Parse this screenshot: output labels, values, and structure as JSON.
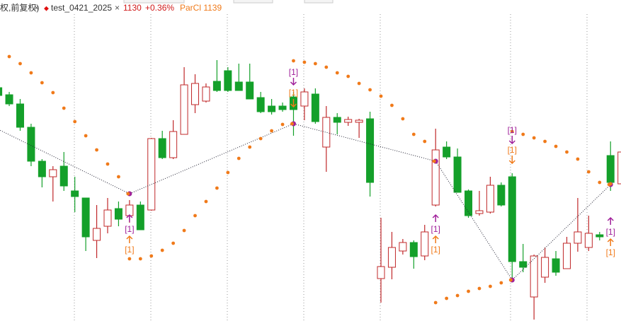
{
  "chart_data": {
    "type": "candlestick",
    "header": {
      "prefix": "权,前复权)",
      "close_mark": "×",
      "symbol_mark": "◆",
      "symbol": "test_0421_2025",
      "price": "1130",
      "close_mark2": "×",
      "change": "+0.36%",
      "indicator": "ParCl 1139"
    },
    "ylim": [
      0,
      454
    ],
    "up_color": "#c0282a",
    "down_color": "#14a02a",
    "sar_color": "#f07a1a",
    "open": [
      330,
      320,
      307,
      274,
      226,
      204,
      219,
      184,
      174,
      114,
      134,
      159,
      149,
      164,
      157,
      258,
      231,
      264,
      306,
      311,
      339,
      354,
      338,
      338,
      316,
      304,
      304,
      317,
      304,
      321,
      246,
      288,
      281,
      281,
      286,
      60,
      76,
      99,
      111,
      92,
      164,
      246,
      232,
      184,
      152,
      154,
      192,
      204,
      84,
      34,
      62,
      88,
      74,
      110,
      104,
      122,
      234,
      194
    ],
    "high": [
      334,
      324,
      314,
      279,
      229,
      219,
      239,
      204,
      174,
      164,
      174,
      169,
      171,
      169,
      259,
      269,
      284,
      359,
      349,
      336,
      369,
      359,
      364,
      364,
      324,
      314,
      309,
      324,
      329,
      329,
      304,
      294,
      289,
      286,
      296,
      146,
      126,
      116,
      114,
      136,
      272,
      254,
      244,
      186,
      184,
      204,
      196,
      209,
      109,
      94,
      104,
      99,
      119,
      174,
      149,
      126,
      254,
      254
    ],
    "low": [
      314,
      304,
      269,
      219,
      189,
      169,
      184,
      154,
      99,
      89,
      124,
      134,
      139,
      129,
      156,
      229,
      229,
      264,
      294,
      309,
      324,
      324,
      326,
      314,
      294,
      292,
      296,
      262,
      284,
      279,
      211,
      264,
      276,
      259,
      176,
      26,
      59,
      94,
      74,
      86,
      162,
      229,
      182,
      146,
      149,
      152,
      162,
      59,
      69,
      2,
      54,
      64,
      74,
      98,
      99,
      114,
      184,
      180
    ],
    "close": [
      319,
      307,
      274,
      226,
      204,
      214,
      191,
      176,
      119,
      131,
      157,
      144,
      164,
      129,
      258,
      231,
      268,
      334,
      336,
      331,
      326,
      326,
      326,
      314,
      296,
      296,
      299,
      299,
      324,
      282,
      288,
      281,
      285,
      284,
      196,
      77,
      104,
      111,
      91,
      126,
      242,
      232,
      182,
      149,
      156,
      192,
      164,
      84,
      76,
      92,
      90,
      69,
      110,
      126,
      124,
      119,
      196,
      239
    ],
    "sar": [
      null,
      374,
      364,
      351,
      337,
      323,
      301,
      282,
      262,
      242,
      222,
      204,
      88,
      88,
      92,
      100,
      110,
      128,
      149,
      169,
      188,
      210,
      230,
      246,
      258,
      269,
      278,
      368,
      366,
      364,
      359,
      351,
      346,
      336,
      327,
      318,
      305,
      286,
      264,
      254,
      26,
      32,
      36,
      42,
      46,
      49,
      54,
      268,
      264,
      259,
      254,
      247,
      239,
      229,
      211,
      196,
      194,
      null
    ],
    "zigzag": {
      "x": [
        0,
        12,
        27,
        40,
        47,
        56
      ],
      "values": [
        271,
        180,
        279,
        226,
        58,
        193
      ]
    },
    "annotations": [
      {
        "text": "[1]",
        "color": "#a0209a"
      },
      {
        "text": "[1]",
        "color": "#f07a1a"
      },
      {
        "text": "[1]",
        "color": "#a0209a"
      },
      {
        "text": "[1]",
        "color": "#f07a1a"
      },
      {
        "text": "[1]",
        "color": "#a0209a"
      },
      {
        "text": "[1]",
        "color": "#f07a1a"
      },
      {
        "text": "[1]",
        "color": "#a0209a"
      },
      {
        "text": "[1]",
        "color": "#f07a1a"
      },
      {
        "text": "[1]",
        "color": "#a0209a"
      },
      {
        "text": "[1]",
        "color": "#f07a1a"
      }
    ]
  }
}
